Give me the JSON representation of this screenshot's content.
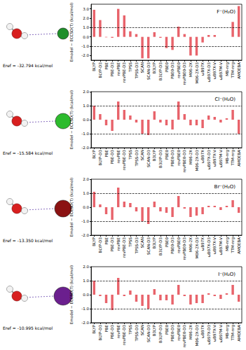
{
  "chart_data": [
    {
      "type": "bar",
      "title": "F⁻(H₂O)",
      "annotation": "Eref = -32.794 kcal/mol",
      "y_label": "Emodel − ECCSD(T) (kcal/mol)",
      "categories": [
        "BLYP",
        "BLYP-D3",
        "PBE",
        "PBE-D3",
        "revPBE",
        "revPBE-D3",
        "TPSS",
        "TPSS-D3",
        "SCAN",
        "SCAN-D3",
        "B3LYP",
        "B3LYP-D3",
        "PBE0",
        "PBE0-D3",
        "revPBE0",
        "revPBE0-D3",
        "M06-2X",
        "M06-2X-D3",
        "ωB97X",
        "ωB97X-D3",
        "ωB97X-V",
        "ωB97M-V",
        "MB-nrg",
        "TTM-nrg",
        "AMOEBA"
      ],
      "values": [
        2.9,
        1.8,
        -0.05,
        -0.1,
        3.0,
        2.3,
        0.6,
        0.3,
        -2.3,
        -2.3,
        0.5,
        -0.1,
        -1.2,
        -1.4,
        1.1,
        0.3,
        -2.0,
        -2.0,
        -0.6,
        0.2,
        0.2,
        0.0,
        0.0,
        1.6,
        3.3
      ],
      "color": "#e8636b",
      "ylim": [
        -2.5,
        3.5
      ],
      "yticks": [
        {
          "value": -2,
          "label": "-2.0"
        },
        {
          "value": -1,
          "label": "-1.0"
        },
        {
          "value": 0,
          "label": "0.0"
        },
        {
          "value": 1,
          "label": "1.0"
        },
        {
          "value": 2,
          "label": "2.0"
        },
        {
          "value": 3,
          "label": "3.0"
        }
      ],
      "reference_lines": [
        -1,
        1
      ],
      "grid": false
    },
    {
      "type": "bar",
      "title": "Cl⁻(H₂O)",
      "annotation": "Eref = -15.584 kcal/mol",
      "y_label": "Emodel − ECCSD(T) (kcal/mol)",
      "categories": [
        "BLYP",
        "BLYP-D3",
        "PBE",
        "PBE-D3",
        "revPBE",
        "revPBE-D3",
        "TPSS",
        "TPSS-D3",
        "SCAN",
        "SCAN-D3",
        "B3LYP",
        "B3LYP-D3",
        "PBE0",
        "PBE0-D3",
        "revPBE0",
        "revPBE0-D3",
        "M06-2X",
        "M06-2X-D3",
        "ωB97X",
        "ωB97X-D3",
        "ωB97X-V",
        "ωB97M-V",
        "MB-nrg",
        "TTM-nrg",
        "AMOEBA"
      ],
      "values": [
        1.0,
        0.4,
        -0.4,
        -0.8,
        1.3,
        0.7,
        0.3,
        -0.2,
        -1.0,
        -1.1,
        0.6,
        -0.2,
        -0.4,
        -0.7,
        1.3,
        0.4,
        -0.4,
        -0.4,
        -0.6,
        0.3,
        0.2,
        -0.2,
        0.1,
        0.7,
        -1.0
      ],
      "color": "#e8636b",
      "ylim": [
        -2,
        2
      ],
      "yticks": [
        {
          "value": -2,
          "label": "-2.0"
        },
        {
          "value": -1,
          "label": "-1.0"
        },
        {
          "value": 0,
          "label": "0.0"
        },
        {
          "value": 1,
          "label": "1.0"
        },
        {
          "value": 2,
          "label": "2.0"
        }
      ],
      "reference_lines": [
        -1,
        1
      ],
      "grid": false
    },
    {
      "type": "bar",
      "title": "Br⁻(H₂O)",
      "annotation": "Eref = -13.350 kcal/mol",
      "y_label": "Emodel − ECCSD(T) (kcal/mol)",
      "categories": [
        "BLYP",
        "BLYP-D3",
        "PBE",
        "PBE-D3",
        "revPBE",
        "revPBE-D3",
        "TPSS",
        "TPSS-D3",
        "SCAN",
        "SCAN-D3",
        "B3LYP",
        "B3LYP-D3",
        "PBE0",
        "PBE0-D3",
        "revPBE0",
        "revPBE0-D3",
        "M06-2X",
        "M06-2X-D3",
        "ωB97X",
        "ωB97X-D3",
        "ωB97X-V",
        "ωB97M-V",
        "MB-nrg",
        "TTM-nrg",
        "AMOEBA"
      ],
      "values": [
        1.1,
        0.2,
        -0.5,
        -0.9,
        1.4,
        0.4,
        0.3,
        -0.3,
        -1.0,
        -1.2,
        0.4,
        -0.3,
        -0.4,
        -0.7,
        0.8,
        -0.1,
        -0.7,
        -0.6,
        -0.5,
        0.1,
        0.1,
        -0.2,
        0.1,
        0.5,
        -0.4
      ],
      "color": "#e8636b",
      "ylim": [
        -2,
        2
      ],
      "yticks": [
        {
          "value": -2,
          "label": "-2.0"
        },
        {
          "value": -1,
          "label": "-1.0"
        },
        {
          "value": 0,
          "label": "0.0"
        },
        {
          "value": 1,
          "label": "1.0"
        },
        {
          "value": 2,
          "label": "2.0"
        }
      ],
      "reference_lines": [
        -1,
        1
      ],
      "grid": false
    },
    {
      "type": "bar",
      "title": "I⁻(H₂O)",
      "annotation": "Eref = -10.995 kcal/mol",
      "y_label": "Emodel − ECCSD(T) (kcal/mol)",
      "categories": [
        "BLYP",
        "BLYP-D3",
        "PBE",
        "PBE-D3",
        "revPBE",
        "revPBE-D3",
        "TPSS",
        "TPSS-D3",
        "SCAN",
        "SCAN-D3",
        "B3LYP",
        "B3LYP-D3",
        "PBE0",
        "PBE0-D3",
        "revPBE0",
        "revPBE0-D3",
        "M06-2X",
        "M06-2X-D3",
        "ωB97X",
        "ωB97X-D3",
        "ωB97X-V",
        "ωB97M-V",
        "MB-nrg",
        "TTM-nrg",
        "AMOEBA"
      ],
      "values": [
        1.0,
        -0.1,
        -0.6,
        -1.1,
        1.2,
        -0.1,
        0.3,
        -0.5,
        -0.8,
        -1.0,
        0.4,
        -0.4,
        -0.4,
        -0.7,
        0.7,
        -0.1,
        -0.7,
        -0.6,
        -0.6,
        0.1,
        -0.1,
        -0.3,
        0.1,
        0.7,
        -0.5
      ],
      "color": "#e8636b",
      "ylim": [
        -2,
        2
      ],
      "yticks": [
        {
          "value": -2,
          "label": "-2.0"
        },
        {
          "value": -1,
          "label": "-1.0"
        },
        {
          "value": 0,
          "label": "0.0"
        },
        {
          "value": 1,
          "label": "1.0"
        },
        {
          "value": 2,
          "label": "2.0"
        }
      ],
      "reference_lines": [
        -1,
        1
      ],
      "grid": false
    }
  ]
}
